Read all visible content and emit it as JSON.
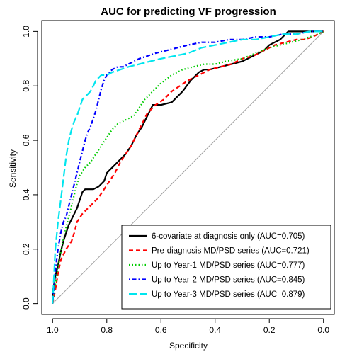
{
  "chart_data": {
    "type": "line",
    "title": "AUC for predicting VF progression",
    "xlabel": "Specificity",
    "ylabel": "Sensitivity",
    "xlim": [
      1.04,
      -0.04
    ],
    "ylim": [
      -0.04,
      1.04
    ],
    "x_reversed": true,
    "xticks": [
      1.0,
      0.8,
      0.6,
      0.4,
      0.2,
      0.0
    ],
    "xtick_labels": [
      "1.0",
      "0.8",
      "0.6",
      "0.4",
      "0.2",
      "0.0"
    ],
    "yticks": [
      0.0,
      0.2,
      0.4,
      0.6,
      0.8,
      1.0
    ],
    "ytick_labels": [
      "0.0",
      "0.2",
      "0.4",
      "0.6",
      "0.8",
      "1.0"
    ],
    "grid": false,
    "legend_position": "bottom-right",
    "reference_line": {
      "from": [
        1.0,
        0.0
      ],
      "to": [
        0.0,
        1.0
      ],
      "color": "#a0a0a0"
    },
    "series": [
      {
        "name": "6-covariate at diagnosis only (AUC=0.705)",
        "color": "#000000",
        "dash": "solid",
        "x": [
          1.0,
          1.0,
          0.99,
          0.98,
          0.97,
          0.96,
          0.95,
          0.94,
          0.93,
          0.92,
          0.91,
          0.9,
          0.89,
          0.88,
          0.87,
          0.86,
          0.85,
          0.83,
          0.81,
          0.8,
          0.79,
          0.77,
          0.75,
          0.73,
          0.71,
          0.69,
          0.67,
          0.65,
          0.63,
          0.6,
          0.56,
          0.52,
          0.49,
          0.47,
          0.46,
          0.44,
          0.42,
          0.38,
          0.34,
          0.3,
          0.26,
          0.22,
          0.2,
          0.18,
          0.16,
          0.14,
          0.13,
          0.11,
          0.05,
          0.0
        ],
        "y": [
          0.0,
          0.04,
          0.1,
          0.14,
          0.19,
          0.23,
          0.26,
          0.29,
          0.31,
          0.33,
          0.35,
          0.38,
          0.41,
          0.42,
          0.42,
          0.42,
          0.42,
          0.43,
          0.45,
          0.48,
          0.49,
          0.51,
          0.53,
          0.55,
          0.58,
          0.62,
          0.65,
          0.69,
          0.73,
          0.73,
          0.74,
          0.78,
          0.82,
          0.84,
          0.85,
          0.86,
          0.86,
          0.87,
          0.88,
          0.89,
          0.91,
          0.93,
          0.95,
          0.96,
          0.97,
          0.99,
          1.0,
          1.0,
          1.0,
          1.0
        ]
      },
      {
        "name": "Pre-diagnosis MD/PSD series (AUC=0.721)",
        "color": "#ff0000",
        "dash": "dashed",
        "x": [
          1.0,
          0.99,
          0.98,
          0.97,
          0.95,
          0.93,
          0.92,
          0.91,
          0.89,
          0.87,
          0.85,
          0.83,
          0.81,
          0.79,
          0.77,
          0.75,
          0.73,
          0.71,
          0.69,
          0.67,
          0.65,
          0.62,
          0.59,
          0.56,
          0.53,
          0.5,
          0.46,
          0.42,
          0.38,
          0.34,
          0.3,
          0.26,
          0.22,
          0.18,
          0.14,
          0.1,
          0.07,
          0.04,
          0.02,
          0.0
        ],
        "y": [
          0.0,
          0.05,
          0.11,
          0.16,
          0.2,
          0.23,
          0.26,
          0.3,
          0.33,
          0.35,
          0.37,
          0.39,
          0.42,
          0.45,
          0.48,
          0.52,
          0.55,
          0.58,
          0.62,
          0.66,
          0.7,
          0.73,
          0.75,
          0.78,
          0.8,
          0.82,
          0.84,
          0.86,
          0.87,
          0.88,
          0.9,
          0.91,
          0.93,
          0.95,
          0.96,
          0.97,
          0.97,
          0.98,
          0.99,
          1.0
        ]
      },
      {
        "name": "Up to Year-1 MD/PSD series (AUC=0.777)",
        "color": "#00cc00",
        "dash": "dotted",
        "x": [
          1.0,
          0.99,
          0.98,
          0.97,
          0.96,
          0.95,
          0.94,
          0.93,
          0.92,
          0.91,
          0.9,
          0.88,
          0.86,
          0.84,
          0.82,
          0.8,
          0.78,
          0.76,
          0.74,
          0.72,
          0.7,
          0.68,
          0.66,
          0.63,
          0.6,
          0.56,
          0.52,
          0.48,
          0.44,
          0.4,
          0.36,
          0.3,
          0.25,
          0.2,
          0.16,
          0.12,
          0.08,
          0.05,
          0.02,
          0.0
        ],
        "y": [
          0.0,
          0.07,
          0.13,
          0.19,
          0.24,
          0.28,
          0.32,
          0.36,
          0.4,
          0.44,
          0.47,
          0.5,
          0.52,
          0.55,
          0.58,
          0.61,
          0.64,
          0.66,
          0.67,
          0.68,
          0.69,
          0.72,
          0.75,
          0.78,
          0.81,
          0.84,
          0.86,
          0.87,
          0.88,
          0.88,
          0.89,
          0.9,
          0.92,
          0.94,
          0.95,
          0.96,
          0.97,
          0.98,
          0.99,
          1.0
        ]
      },
      {
        "name": "Up to Year-2 MD/PSD series (AUC=0.845)",
        "color": "#0000ff",
        "dash": "dotdash",
        "x": [
          1.0,
          0.99,
          0.98,
          0.97,
          0.96,
          0.95,
          0.94,
          0.93,
          0.92,
          0.91,
          0.9,
          0.89,
          0.88,
          0.87,
          0.86,
          0.85,
          0.84,
          0.83,
          0.82,
          0.81,
          0.8,
          0.79,
          0.78,
          0.76,
          0.74,
          0.72,
          0.7,
          0.68,
          0.65,
          0.62,
          0.58,
          0.54,
          0.5,
          0.45,
          0.4,
          0.35,
          0.3,
          0.25,
          0.2,
          0.15,
          0.1,
          0.05,
          0.0
        ],
        "y": [
          0.0,
          0.12,
          0.2,
          0.26,
          0.3,
          0.32,
          0.36,
          0.4,
          0.44,
          0.48,
          0.52,
          0.56,
          0.6,
          0.63,
          0.65,
          0.68,
          0.71,
          0.75,
          0.79,
          0.82,
          0.84,
          0.85,
          0.86,
          0.87,
          0.87,
          0.88,
          0.89,
          0.9,
          0.91,
          0.92,
          0.93,
          0.94,
          0.95,
          0.96,
          0.96,
          0.97,
          0.97,
          0.98,
          0.98,
          0.99,
          0.99,
          1.0,
          1.0
        ]
      },
      {
        "name": "Up to Year-3 MD/PSD series (AUC=0.879)",
        "color": "#00e5ee",
        "dash": "longdash",
        "x": [
          1.0,
          0.99,
          0.98,
          0.97,
          0.96,
          0.95,
          0.94,
          0.93,
          0.92,
          0.91,
          0.9,
          0.89,
          0.88,
          0.87,
          0.86,
          0.85,
          0.84,
          0.83,
          0.82,
          0.8,
          0.78,
          0.75,
          0.72,
          0.68,
          0.64,
          0.6,
          0.55,
          0.5,
          0.45,
          0.4,
          0.35,
          0.3,
          0.25,
          0.2,
          0.15,
          0.1,
          0.05,
          0.0
        ],
        "y": [
          0.0,
          0.2,
          0.3,
          0.38,
          0.46,
          0.54,
          0.6,
          0.64,
          0.67,
          0.69,
          0.72,
          0.75,
          0.76,
          0.77,
          0.78,
          0.8,
          0.82,
          0.83,
          0.84,
          0.84,
          0.85,
          0.86,
          0.87,
          0.88,
          0.89,
          0.9,
          0.91,
          0.92,
          0.94,
          0.95,
          0.96,
          0.97,
          0.97,
          0.98,
          0.99,
          0.99,
          1.0,
          1.0
        ]
      }
    ]
  }
}
